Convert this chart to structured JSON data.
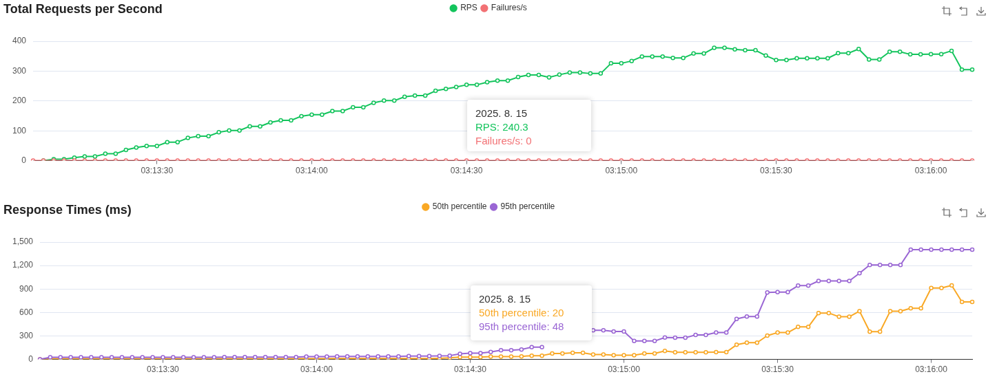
{
  "chart_data": [
    {
      "type": "line",
      "title": "Total Requests per Second",
      "categories": [
        null,
        null,
        null,
        null,
        null,
        null,
        null,
        null,
        null,
        null,
        null,
        null,
        "03:13:30",
        null,
        null,
        null,
        null,
        null,
        null,
        null,
        null,
        null,
        null,
        null,
        null,
        null,
        null,
        "03:14:00",
        null,
        null,
        null,
        null,
        null,
        null,
        null,
        null,
        null,
        null,
        null,
        null,
        null,
        null,
        "03:14:30",
        null,
        null,
        null,
        null,
        null,
        null,
        null,
        null,
        null,
        null,
        null,
        null,
        null,
        null,
        "03:15:00",
        null,
        null,
        null,
        null,
        null,
        null,
        null,
        null,
        null,
        null,
        null,
        null,
        null,
        null,
        "03:15:30",
        null,
        null,
        null,
        null,
        null,
        null,
        null,
        null,
        null,
        null,
        null,
        null,
        null,
        null,
        "03:16:00",
        null,
        null,
        null,
        null
      ],
      "series": [
        {
          "name": "RPS",
          "color": "#13c45c",
          "values": [
            null,
            0,
            5,
            5,
            10,
            14,
            14,
            23,
            23,
            36,
            44,
            49,
            49,
            62,
            62,
            76,
            82,
            82,
            95,
            101,
            101,
            115,
            115,
            128,
            135,
            135,
            149,
            154,
            154,
            166,
            166,
            179,
            179,
            194,
            201,
            201,
            214,
            218,
            218,
            234,
            240.3,
            247,
            254,
            254,
            263,
            268,
            268,
            280,
            287,
            287,
            279,
            288,
            295,
            295,
            292,
            292,
            326,
            326,
            334,
            349,
            349,
            349,
            344,
            344,
            359,
            359,
            378,
            378,
            373,
            370,
            370,
            352,
            337,
            337,
            343,
            343,
            343,
            343,
            360,
            360,
            374,
            339,
            339,
            365,
            365,
            356,
            356,
            357,
            357,
            368,
            305,
            305
          ]
        },
        {
          "name": "Failures/s",
          "color": "#f27174",
          "values": [
            0,
            0,
            0,
            0,
            0,
            0,
            0,
            0,
            0,
            0,
            0,
            0,
            0,
            0,
            0,
            0,
            0,
            0,
            0,
            0,
            0,
            0,
            0,
            0,
            0,
            0,
            0,
            0,
            0,
            0,
            0,
            0,
            0,
            0,
            0,
            0,
            0,
            0,
            0,
            0,
            0,
            0,
            0,
            0,
            0,
            0,
            0,
            0,
            0,
            0,
            0,
            0,
            0,
            0,
            0,
            0,
            0,
            0,
            0,
            0,
            0,
            0,
            0,
            0,
            0,
            0,
            0,
            0,
            0,
            0,
            0,
            0,
            0,
            0,
            0,
            0,
            0,
            0,
            0,
            0,
            0,
            0,
            0,
            0,
            0,
            0,
            0,
            0,
            0,
            0,
            0,
            0
          ]
        }
      ],
      "ylim": [
        0,
        400
      ],
      "yticks": [
        0,
        100,
        200,
        300,
        400
      ],
      "grid": "y",
      "legend": "top",
      "marker": "circle",
      "annotations": [
        "2025. 8. 15",
        "RPS: 240.3",
        "Failures/s: 0"
      ]
    },
    {
      "type": "line",
      "title": "Response Times (ms)",
      "categories": [
        null,
        null,
        null,
        null,
        null,
        null,
        null,
        null,
        null,
        null,
        null,
        null,
        "03:13:30",
        null,
        null,
        null,
        null,
        null,
        null,
        null,
        null,
        null,
        null,
        null,
        null,
        null,
        null,
        "03:14:00",
        null,
        null,
        null,
        null,
        null,
        null,
        null,
        null,
        null,
        null,
        null,
        null,
        null,
        null,
        "03:14:30",
        null,
        null,
        null,
        null,
        null,
        null,
        null,
        null,
        null,
        null,
        null,
        null,
        null,
        null,
        "03:15:00",
        null,
        null,
        null,
        null,
        null,
        null,
        null,
        null,
        null,
        null,
        null,
        null,
        null,
        null,
        "03:15:30",
        null,
        null,
        null,
        null,
        null,
        null,
        null,
        null,
        null,
        null,
        null,
        null,
        null,
        null,
        "03:16:00",
        null,
        null,
        null,
        null
      ],
      "series": [
        {
          "name": "50th percentile",
          "color": "#f9a825",
          "values": [
            0,
            9,
            9,
            9,
            9,
            9,
            9,
            9,
            9,
            9,
            9,
            9,
            9,
            9,
            9,
            9,
            9,
            9,
            9,
            9,
            9,
            9,
            9,
            9,
            9,
            9,
            9,
            9,
            9,
            12,
            12,
            12,
            12,
            12,
            12,
            12,
            12,
            12,
            12,
            15,
            20,
            30,
            30,
            30,
            36,
            36,
            36,
            39,
            48,
            48,
            75,
            75,
            84,
            84,
            63,
            63,
            54,
            54,
            54,
            75,
            75,
            108,
            90,
            90,
            90,
            90,
            93,
            93,
            187,
            214,
            214,
            304,
            343,
            343,
            416,
            416,
            593,
            593,
            545,
            545,
            617,
            355,
            355,
            617,
            617,
            654,
            654,
            913,
            913,
            946,
            735,
            735
          ]
        },
        {
          "name": "95th percentile",
          "color": "#9a66d4",
          "values": [
            0,
            27,
            27,
            27,
            27,
            27,
            27,
            27,
            27,
            27,
            27,
            27,
            27,
            27,
            27,
            27,
            27,
            27,
            30,
            30,
            30,
            30,
            30,
            30,
            30,
            30,
            36,
            36,
            36,
            39,
            39,
            39,
            39,
            39,
            39,
            39,
            42,
            42,
            42,
            45,
            48,
            72,
            81,
            81,
            96,
            117,
            117,
            126,
            157,
            157,
            null,
            null,
            null,
            null,
            372,
            372,
            357,
            357,
            235,
            235,
            235,
            280,
            277,
            277,
            313,
            313,
            343,
            343,
            518,
            548,
            548,
            855,
            861,
            861,
            943,
            943,
            1003,
            1003,
            1003,
            1003,
            1102,
            1208,
            1208,
            1208,
            1208,
            1404,
            1404,
            1404,
            1404,
            1404,
            1404,
            1404
          ]
        }
      ],
      "ylim": [
        0,
        1500
      ],
      "yticks": [
        0,
        {
          "value": 300,
          "label": "300"
        },
        {
          "value": 600,
          "label": "600"
        },
        {
          "value": 900,
          "label": "900"
        },
        {
          "value": 1200,
          "label": "1,200"
        },
        {
          "value": 1500,
          "label": "1,500"
        }
      ],
      "grid": "y",
      "legend": "top",
      "marker": "circle",
      "annotations": [
        "2025. 8. 15",
        "50th percentile: 20",
        "95th percentile: 48"
      ]
    }
  ]
}
